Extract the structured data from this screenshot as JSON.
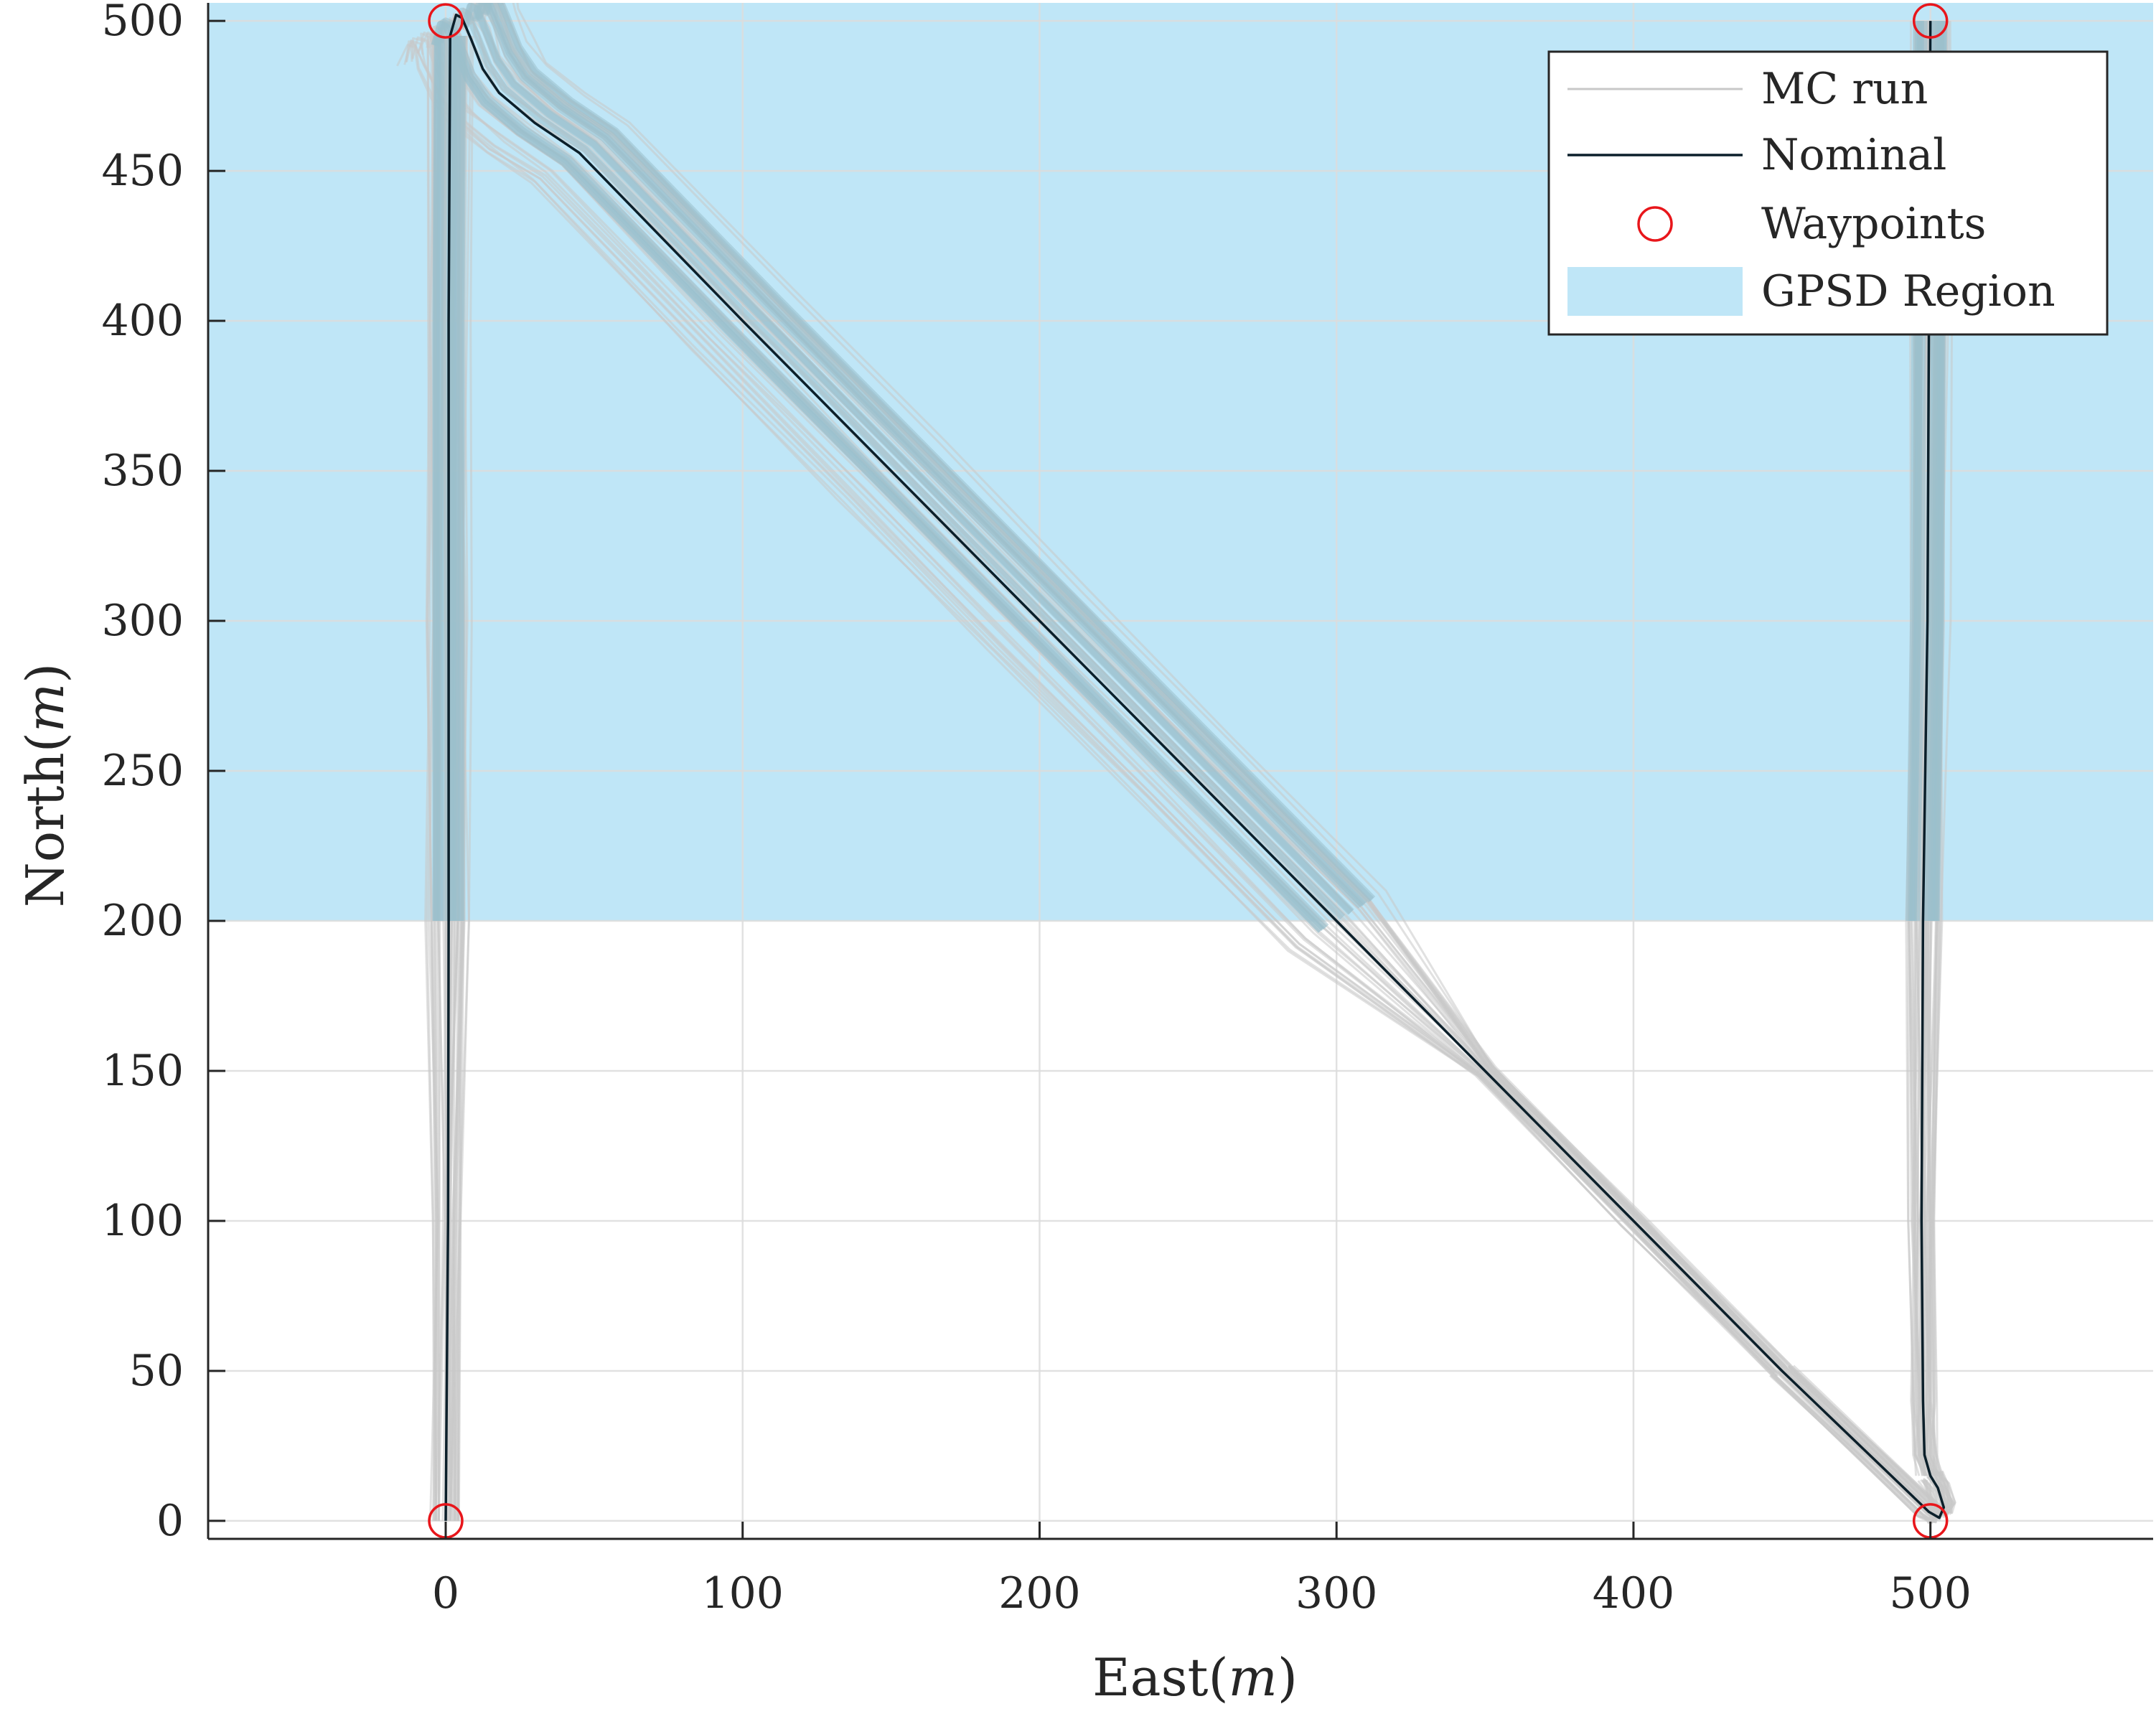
{
  "chart_data": {
    "type": "line",
    "xlabel": "East",
    "xlabel_unit": "m",
    "ylabel": "North",
    "ylabel_unit": "m",
    "xlim": [
      -80,
      575
    ],
    "ylim": [
      -6,
      506
    ],
    "x_ticks": [
      0,
      100,
      200,
      300,
      400,
      500
    ],
    "y_ticks": [
      0,
      50,
      100,
      150,
      200,
      250,
      300,
      350,
      400,
      450,
      500
    ],
    "grid": true,
    "legend_position": "top-right",
    "legend": [
      "MC run",
      "Nominal",
      "Waypoints",
      "GPSD Region"
    ],
    "gpsd_region": {
      "y_from": 200,
      "y_to": 506
    },
    "waypoints": [
      {
        "x": 0,
        "y": 0
      },
      {
        "x": 0,
        "y": 500
      },
      {
        "x": 500,
        "y": 0
      },
      {
        "x": 500,
        "y": 500
      }
    ],
    "series": [
      {
        "name": "Nominal",
        "x": [
          0,
          0.8,
          1.0,
          1.0,
          1.0,
          1.5,
          3.5,
          5.5,
          8.5,
          12.5,
          18,
          30,
          45,
          100,
          150,
          200,
          250,
          300,
          350,
          400,
          450,
          499.5,
          503,
          504.5,
          502.5,
          500,
          498.0,
          497.5,
          497.0,
          497.5,
          499.0,
          499.5,
          500
        ],
        "y": [
          0,
          100,
          200,
          300,
          400,
          495,
          502,
          501,
          494,
          484,
          476,
          466,
          456,
          400,
          350,
          300,
          250,
          200,
          150,
          100,
          50,
          3,
          1,
          4.5,
          11,
          15,
          22,
          40,
          100,
          200,
          300,
          400,
          500
        ]
      },
      {
        "name": "MC run",
        "x": [
          0,
          0.8,
          1.0,
          1.0,
          1.0,
          1.5,
          3.5,
          5.5,
          8.5,
          12.5,
          18,
          30,
          45,
          100,
          150,
          200,
          250,
          300,
          350,
          400,
          450,
          499.5,
          503,
          504.5,
          502.5,
          500,
          498.0,
          497.5,
          497.0,
          497.5,
          499.0,
          499.5,
          500
        ],
        "y": [
          0,
          100,
          200,
          300,
          400,
          495,
          502,
          501,
          494,
          484,
          476,
          466,
          456,
          400,
          350,
          300,
          250,
          200,
          150,
          100,
          50,
          3,
          1,
          4.5,
          11,
          15,
          22,
          40,
          100,
          200,
          300,
          400,
          500
        ],
        "envelope": {
          "left_up": {
            "x": [
              -6,
              -8,
              -5,
              -5,
              -6,
              -6,
              -7,
              -7,
              -5,
              0,
              7,
              10
            ],
            "y": [
              -5,
              0,
              20,
              80,
              120,
              180,
              250,
              320,
              420,
              480,
              500,
              504
            ]
          },
          "right_down": {
            "x": [
              -3,
              8,
              12,
              40,
              120,
              200,
              240,
              260,
              300,
              320,
              345,
              350,
              360,
              420,
              480,
              505,
              510
            ],
            "y": [
              503,
              497,
              485,
              460,
              380,
              310,
              270,
              240,
              200,
              178,
              168,
              160,
              150,
              90,
              26,
              4,
              -4
            ],
            "upper_x": [
              -3,
              6,
              10,
              30,
              90,
              170,
              235,
              255,
              300,
              330,
              350,
              380,
              440,
              490,
              495
            ],
            "upper_y": [
              503,
              503,
              496,
              470,
              412,
              335,
              272,
              252,
              210,
              185,
              158,
              130,
              70,
              18,
              6
            ]
          },
          "right_up": {
            "x": [
              493,
              494,
              493,
              492,
              491,
              491,
              492,
              493,
              494,
              500,
              505,
              506,
              507,
              506,
              505,
              504,
              503
            ],
            "y": [
              -5,
              30,
              80,
              150,
              250,
              350,
              420,
              480,
              505,
              507,
              505,
              480,
              420,
              350,
              250,
              150,
              30
            ]
          },
          "left_down": {
            "x": [
              -5,
              10,
              80,
              145,
              152,
              168,
              200,
              245,
              300,
              350,
              400,
              445,
              450
            ],
            "y": [
              -6,
              6,
              75,
              140,
              160,
              178,
              205,
              248,
              295,
              340,
              388,
              432,
              420
            ],
            "upper_x": [
              5,
              60,
              140,
              160,
              175,
              205,
              250,
              300,
              350,
              400,
              440
            ],
            "upper_y": [
              -3,
              55,
              130,
              148,
              172,
              190,
              230,
              278,
              320,
              362,
              400
            ]
          }
        }
      }
    ],
    "colors": {
      "gpsd_region": "#bfe6f7",
      "mc_run": "#c8c8c8",
      "mc_run_in_region": "#9bbfcc",
      "nominal": "#0b1f2a",
      "waypoints": "#e8161b",
      "grid": "#dcdcdc",
      "axes": "#262626"
    }
  }
}
